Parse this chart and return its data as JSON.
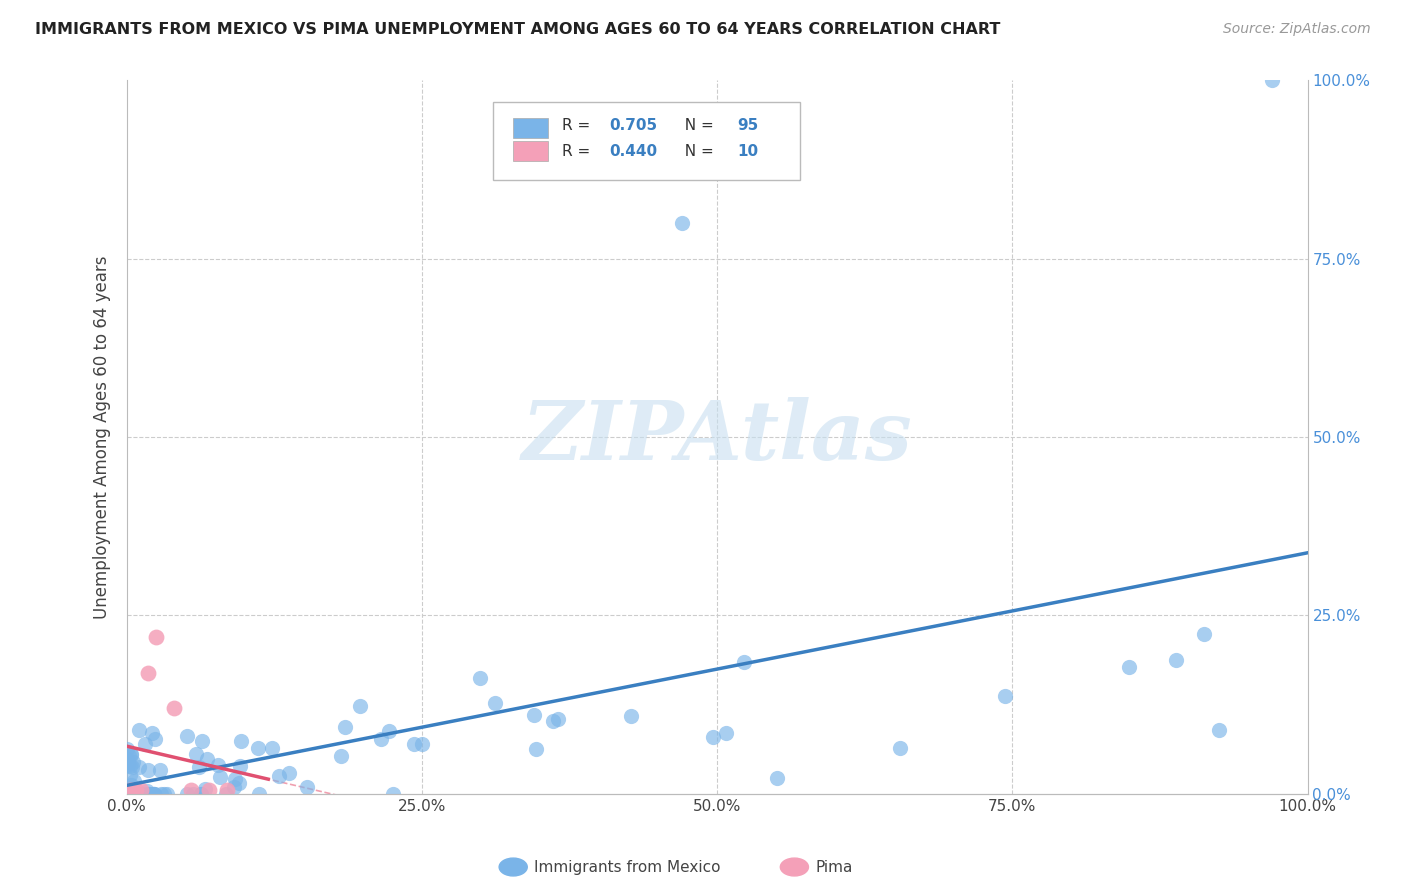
{
  "title": "IMMIGRANTS FROM MEXICO VS PIMA UNEMPLOYMENT AMONG AGES 60 TO 64 YEARS CORRELATION CHART",
  "source": "Source: ZipAtlas.com",
  "ylabel": "Unemployment Among Ages 60 to 64 years",
  "legend_label1": "Immigrants from Mexico",
  "legend_label2": "Pima",
  "r1": 0.705,
  "n1": 95,
  "r2": 0.44,
  "n2": 10,
  "color1": "#a8c8f0",
  "color2": "#f4a8b8",
  "line_color1": "#3a7fc1",
  "line_color2": "#e05070",
  "ref_line_color": "#f0a0b0",
  "watermark_color": "#c8dff0",
  "xlim": [
    0.0,
    1.0
  ],
  "ylim": [
    0.0,
    1.0
  ],
  "xtick_labels": [
    "0.0%",
    "25.0%",
    "50.0%",
    "75.0%",
    "100.0%"
  ],
  "xtick_vals": [
    0.0,
    0.25,
    0.5,
    0.75,
    1.0
  ],
  "ytick_labels_right": [
    "0.0%",
    "25.0%",
    "50.0%",
    "75.0%",
    "100.0%"
  ],
  "ytick_vals": [
    0.0,
    0.25,
    0.5,
    0.75,
    1.0
  ],
  "blue_dot_color": "#7ab4e8",
  "pink_dot_color": "#f4a0b8",
  "seed1": 42,
  "seed2": 99
}
